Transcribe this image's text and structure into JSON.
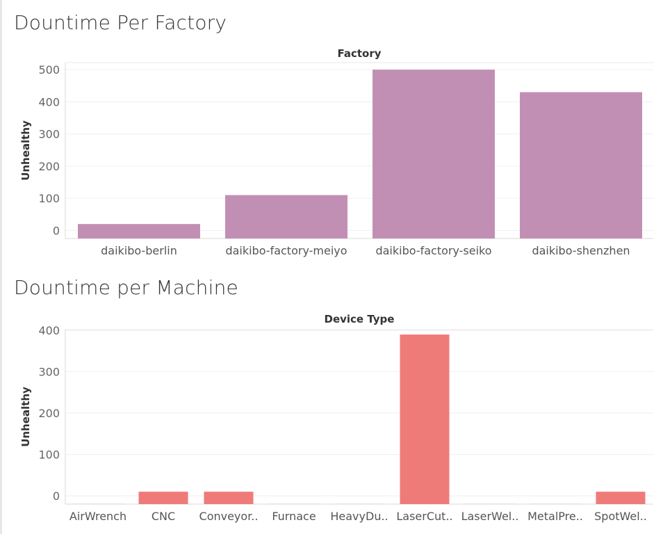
{
  "panels": [
    {
      "title": "Dountime Per Factory",
      "color": "#c28fb4",
      "chart_data": {
        "type": "bar",
        "title": "Dountime Per Factory",
        "xlabel": "Factory",
        "ylabel": "Unhealthy",
        "categories": [
          "daikibo-berlin",
          "daikibo-factory-meiyo",
          "daikibo-factory-seiko",
          "daikibo-shenzhen"
        ],
        "values": [
          20,
          110,
          500,
          430
        ],
        "yticks": [
          0,
          100,
          200,
          300,
          400,
          500
        ],
        "ylim": [
          -25,
          522
        ],
        "grid": true
      }
    },
    {
      "title": "Dountime per Machine",
      "color": "#ef7b79",
      "chart_data": {
        "type": "bar",
        "title": "Dountime per Machine",
        "xlabel": "Device Type",
        "ylabel": "Unhealthy",
        "categories": [
          "AirWrench",
          "CNC",
          "Conveyor..",
          "Furnace",
          "HeavyDu..",
          "LaserCut..",
          "LaserWel..",
          "MetalPre..",
          "SpotWel.."
        ],
        "values": [
          0,
          10,
          10,
          0,
          0,
          390,
          0,
          0,
          10
        ],
        "yticks": [
          0,
          100,
          200,
          300,
          400
        ],
        "ylim": [
          -20,
          402
        ],
        "grid": true
      }
    }
  ]
}
